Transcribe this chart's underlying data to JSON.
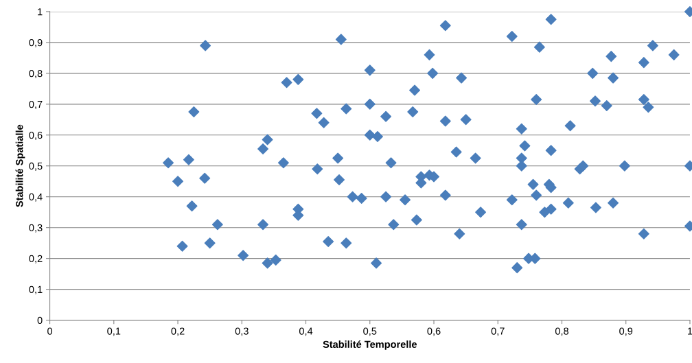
{
  "chart_data": {
    "type": "scatter",
    "xlabel": "Stabilité Temporelle",
    "ylabel": "Stabilité Spatialle",
    "marker": "diamond",
    "grid": "y",
    "color": "#4a7ebb",
    "xlim": [
      0,
      1
    ],
    "ylim": [
      0,
      1
    ],
    "xticks": [
      0,
      {
        "value": 0.1,
        "label": "0,1"
      },
      {
        "value": 0.2,
        "label": "0,2"
      },
      {
        "value": 0.3,
        "label": "0,3"
      },
      {
        "value": 0.4,
        "label": "0,4"
      },
      {
        "value": 0.5,
        "label": "0,5"
      },
      {
        "value": 0.6,
        "label": "0,6"
      },
      {
        "value": 0.7,
        "label": "0,7"
      },
      {
        "value": 0.8,
        "label": "0,8"
      },
      {
        "value": 0.9,
        "label": "0,9"
      },
      1
    ],
    "yticks": [
      0,
      {
        "value": 0.1,
        "label": "0,1"
      },
      {
        "value": 0.2,
        "label": "0,2"
      },
      {
        "value": 0.3,
        "label": "0,3"
      },
      {
        "value": 0.4,
        "label": "0,4"
      },
      {
        "value": 0.5,
        "label": "0,5"
      },
      {
        "value": 0.6,
        "label": "0,6"
      },
      {
        "value": 0.7,
        "label": "0,7"
      },
      {
        "value": 0.8,
        "label": "0,8"
      },
      {
        "value": 0.9,
        "label": "0,9"
      },
      1
    ],
    "x": [
      0.185,
      0.2,
      0.207,
      0.217,
      0.222,
      0.225,
      0.242,
      0.243,
      0.25,
      0.262,
      0.302,
      0.333,
      0.333,
      0.34,
      0.34,
      0.353,
      0.365,
      0.37,
      0.388,
      0.388,
      0.388,
      0.417,
      0.418,
      0.428,
      0.435,
      0.45,
      0.452,
      0.455,
      0.463,
      0.463,
      0.473,
      0.487,
      0.5,
      0.5,
      0.5,
      0.512,
      0.51,
      0.525,
      0.525,
      0.533,
      0.537,
      0.555,
      0.567,
      0.57,
      0.573,
      0.58,
      0.58,
      0.593,
      0.593,
      0.598,
      0.6,
      0.618,
      0.618,
      0.618,
      0.635,
      0.64,
      0.643,
      0.65,
      0.665,
      0.673,
      0.722,
      0.722,
      0.73,
      0.737,
      0.737,
      0.737,
      0.737,
      0.742,
      0.748,
      0.755,
      0.758,
      0.76,
      0.76,
      0.765,
      0.773,
      0.78,
      0.783,
      0.783,
      0.783,
      0.783,
      0.81,
      0.813,
      0.828,
      0.833,
      0.848,
      0.852,
      0.853,
      0.87,
      0.877,
      0.88,
      0.88,
      0.898,
      0.928,
      0.928,
      0.928,
      0.935,
      0.942,
      0.975,
      1.0,
      1.0,
      1.0
    ],
    "values": [
      0.51,
      0.45,
      0.24,
      0.52,
      0.37,
      0.675,
      0.46,
      0.89,
      0.25,
      0.31,
      0.21,
      0.555,
      0.31,
      0.585,
      0.185,
      0.195,
      0.51,
      0.77,
      0.78,
      0.36,
      0.34,
      0.67,
      0.49,
      0.64,
      0.255,
      0.525,
      0.455,
      0.91,
      0.685,
      0.25,
      0.4,
      0.395,
      0.81,
      0.7,
      0.6,
      0.595,
      0.185,
      0.66,
      0.4,
      0.51,
      0.31,
      0.39,
      0.675,
      0.745,
      0.325,
      0.465,
      0.445,
      0.86,
      0.47,
      0.8,
      0.465,
      0.955,
      0.645,
      0.405,
      0.545,
      0.28,
      0.785,
      0.65,
      0.525,
      0.35,
      0.92,
      0.39,
      0.17,
      0.62,
      0.525,
      0.5,
      0.31,
      0.565,
      0.2,
      0.44,
      0.2,
      0.715,
      0.405,
      0.885,
      0.35,
      0.44,
      0.975,
      0.55,
      0.43,
      0.36,
      0.38,
      0.63,
      0.49,
      0.5,
      0.8,
      0.71,
      0.365,
      0.695,
      0.855,
      0.785,
      0.38,
      0.5,
      0.835,
      0.715,
      0.28,
      0.69,
      0.89,
      0.86,
      1.0,
      0.5,
      0.305
    ]
  }
}
